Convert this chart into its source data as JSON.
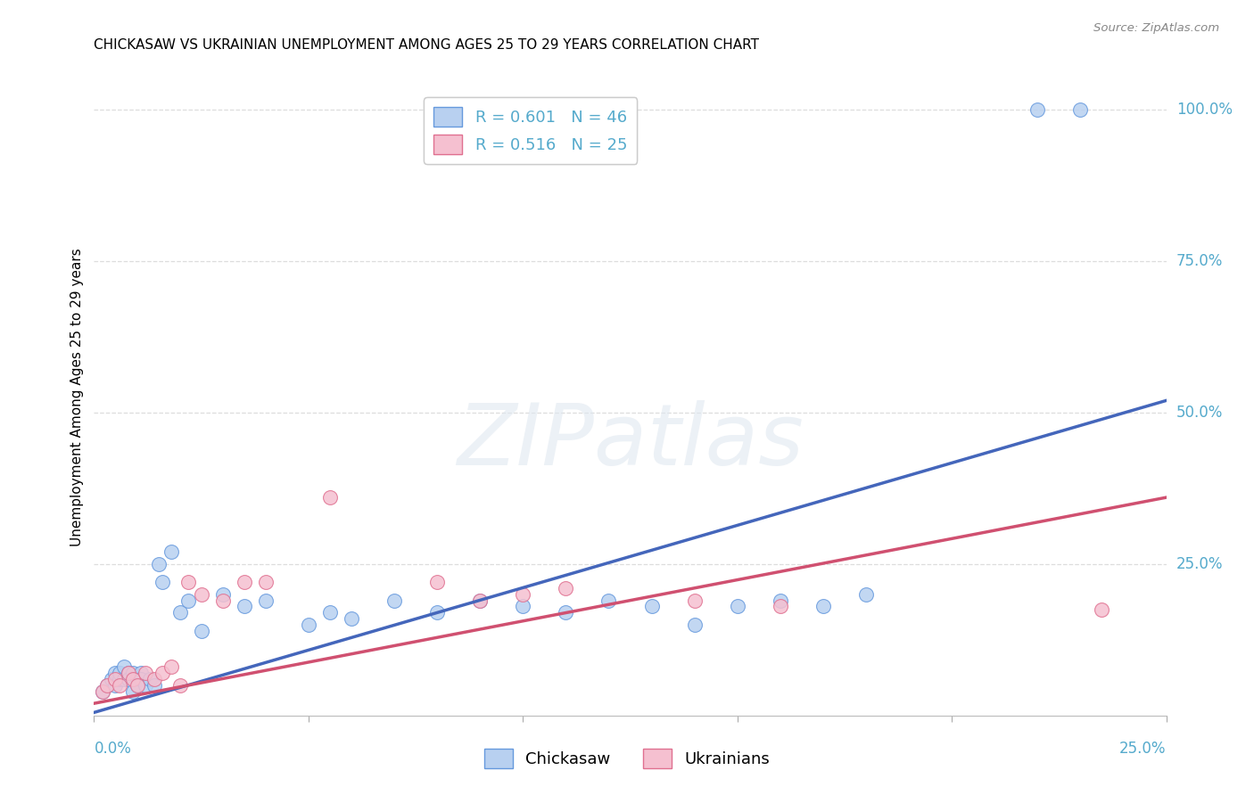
{
  "title": "CHICKASAW VS UKRAINIAN UNEMPLOYMENT AMONG AGES 25 TO 29 YEARS CORRELATION CHART",
  "source": "Source: ZipAtlas.com",
  "ylabel_label": "Unemployment Among Ages 25 to 29 years",
  "xlim": [
    0,
    0.25
  ],
  "ylim": [
    0,
    1.05
  ],
  "series1_name": "Chickasaw",
  "series1_R": 0.601,
  "series1_N": 46,
  "series1_face_color": "#b8d0f0",
  "series1_edge_color": "#6699dd",
  "series1_line_color": "#4466bb",
  "series2_name": "Ukrainians",
  "series2_R": 0.516,
  "series2_N": 25,
  "series2_face_color": "#f5c0d0",
  "series2_edge_color": "#e07090",
  "series2_line_color": "#d05070",
  "watermark": "ZIPatlas",
  "axis_label_color": "#55aacc",
  "grid_color": "#dddddd",
  "title_fontsize": 11,
  "tick_label_fontsize": 12,
  "legend_fontsize": 13,
  "chickasaw_x": [
    0.002,
    0.003,
    0.004,
    0.005,
    0.005,
    0.006,
    0.006,
    0.007,
    0.007,
    0.008,
    0.008,
    0.009,
    0.009,
    0.01,
    0.01,
    0.011,
    0.011,
    0.012,
    0.013,
    0.014,
    0.015,
    0.016,
    0.018,
    0.02,
    0.022,
    0.025,
    0.03,
    0.035,
    0.04,
    0.05,
    0.055,
    0.06,
    0.07,
    0.08,
    0.09,
    0.1,
    0.11,
    0.12,
    0.13,
    0.14,
    0.15,
    0.16,
    0.17,
    0.18,
    0.22,
    0.23
  ],
  "chickasaw_y": [
    0.04,
    0.05,
    0.06,
    0.05,
    0.07,
    0.06,
    0.07,
    0.08,
    0.06,
    0.07,
    0.06,
    0.07,
    0.04,
    0.06,
    0.05,
    0.07,
    0.06,
    0.05,
    0.06,
    0.05,
    0.25,
    0.22,
    0.27,
    0.17,
    0.19,
    0.14,
    0.2,
    0.18,
    0.19,
    0.15,
    0.17,
    0.16,
    0.19,
    0.17,
    0.19,
    0.18,
    0.17,
    0.19,
    0.18,
    0.15,
    0.18,
    0.19,
    0.18,
    0.2,
    1.0,
    1.0
  ],
  "ukrainian_x": [
    0.002,
    0.003,
    0.005,
    0.006,
    0.008,
    0.009,
    0.01,
    0.012,
    0.014,
    0.016,
    0.018,
    0.02,
    0.022,
    0.025,
    0.03,
    0.035,
    0.04,
    0.055,
    0.08,
    0.09,
    0.1,
    0.11,
    0.14,
    0.16,
    0.235
  ],
  "ukrainian_y": [
    0.04,
    0.05,
    0.06,
    0.05,
    0.07,
    0.06,
    0.05,
    0.07,
    0.06,
    0.07,
    0.08,
    0.05,
    0.22,
    0.2,
    0.19,
    0.22,
    0.22,
    0.36,
    0.22,
    0.19,
    0.2,
    0.21,
    0.19,
    0.18,
    0.175
  ],
  "trend1_x": [
    0.0,
    0.25
  ],
  "trend1_y": [
    0.005,
    0.52
  ],
  "trend2_x": [
    0.0,
    0.25
  ],
  "trend2_y": [
    0.02,
    0.36
  ]
}
